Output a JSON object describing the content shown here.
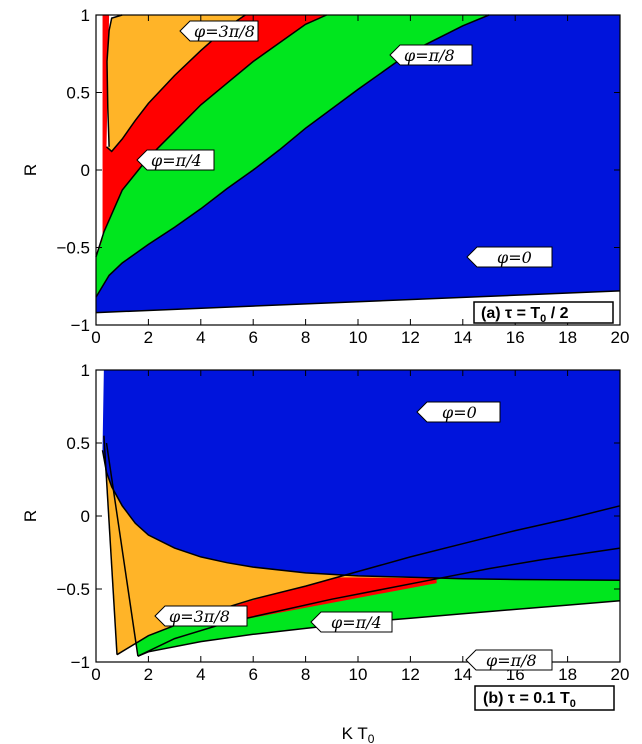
{
  "chart_data": [
    {
      "type": "area",
      "panel": "(a)",
      "panel_label_prefix": "(a)",
      "panel_label_tau": "τ = T",
      "panel_label_sub": "0",
      "panel_label_suffix": " / 2",
      "xlim": [
        0,
        20
      ],
      "ylim": [
        -1,
        1
      ],
      "xlabel": "",
      "ylabel": "R",
      "x_ticks": [
        "0",
        "2",
        "4",
        "6",
        "8",
        "10",
        "12",
        "14",
        "16",
        "18",
        "20"
      ],
      "y_ticks": [
        "1",
        "0.5",
        "0",
        "−0.5",
        "−1"
      ],
      "region_labels": [
        "φ=3π/8",
        "φ=π/8",
        "φ=π/4",
        "φ=0"
      ],
      "colors": {
        "phi_0": "#0014dc",
        "phi_pi_8": "#00e61e",
        "phi_pi_4": "#ff0000",
        "phi_3pi_8": "#ffb428",
        "none": "#ffffff"
      },
      "boundaries": {
        "lower_white": {
          "x": [
            0,
            20
          ],
          "y": [
            -0.92,
            -0.78
          ]
        },
        "blue_green": {
          "x": [
            0,
            0.5,
            1,
            2,
            3,
            4,
            5,
            6,
            7,
            8,
            10,
            12,
            14,
            15
          ],
          "y": [
            -0.82,
            -0.68,
            -0.6,
            -0.48,
            -0.37,
            -0.25,
            -0.12,
            0.0,
            0.13,
            0.27,
            0.52,
            0.76,
            0.93,
            1.0
          ]
        },
        "green_red": {
          "x": [
            0,
            0.3,
            1,
            2,
            3,
            4,
            5,
            6,
            7,
            8,
            8.8
          ],
          "y": [
            -0.56,
            -0.4,
            -0.13,
            0.08,
            0.25,
            0.42,
            0.56,
            0.7,
            0.82,
            0.94,
            1.0
          ]
        },
        "red_orange": {
          "x": [
            0.4,
            0.6,
            1,
            1.5,
            2,
            3,
            4,
            5,
            5.7
          ],
          "y": [
            0.15,
            0.12,
            0.2,
            0.32,
            0.43,
            0.61,
            0.77,
            0.92,
            1.0
          ]
        },
        "orange_top": {
          "x": [
            0.5,
            0.45,
            0.42,
            0.5,
            0.6,
            1.0
          ],
          "y": [
            0.15,
            0.4,
            0.7,
            0.9,
            0.98,
            1.0
          ]
        }
      }
    },
    {
      "type": "area",
      "panel": "(b)",
      "panel_label_prefix": "(b)",
      "panel_label_tau": "τ = 0.1 T",
      "panel_label_sub": "0",
      "panel_label_suffix": "",
      "xlim": [
        0,
        20
      ],
      "ylim": [
        -1,
        1
      ],
      "xlabel": "K T",
      "xlabel_sub": "0",
      "ylabel": "R",
      "x_ticks": [
        "0",
        "2",
        "4",
        "6",
        "8",
        "10",
        "12",
        "14",
        "16",
        "18",
        "20"
      ],
      "y_ticks": [
        "1",
        "0.5",
        "0",
        "−0.5",
        "−1"
      ],
      "region_labels": [
        "φ=0",
        "φ=3π/8",
        "φ=π/4",
        "φ=π/8"
      ],
      "colors": {
        "phi_0": "#0014dc",
        "phi_pi_8": "#00e61e",
        "phi_pi_4": "#ff0000",
        "phi_3pi_8": "#ffb428",
        "none": "#ffffff"
      },
      "boundaries": {
        "blue_orange": {
          "x": [
            0.25,
            0.4,
            0.6,
            1,
            1.5,
            2,
            3,
            4,
            5,
            6,
            8,
            10,
            12,
            14,
            16,
            20
          ],
          "y": [
            0.45,
            0.3,
            0.2,
            0.07,
            -0.05,
            -0.13,
            -0.22,
            -0.28,
            -0.32,
            -0.35,
            -0.39,
            -0.41,
            -0.42,
            -0.43,
            -0.435,
            -0.44
          ]
        },
        "green_lower": {
          "x": [
            1.6,
            2,
            4,
            6,
            8,
            10,
            12,
            14,
            16,
            18,
            20
          ],
          "y": [
            -0.96,
            -0.93,
            -0.86,
            -0.81,
            -0.77,
            -0.73,
            -0.7,
            -0.67,
            -0.64,
            -0.61,
            -0.58
          ]
        },
        "curve_a": {
          "x": [
            0.8,
            2,
            4,
            6,
            8,
            10,
            12,
            14,
            16,
            18,
            20
          ],
          "y": [
            -0.95,
            -0.82,
            -0.68,
            -0.57,
            -0.48,
            -0.38,
            -0.28,
            -0.19,
            -0.1,
            -0.02,
            0.07
          ]
        },
        "curve_b": {
          "x": [
            1.6,
            3,
            5,
            7,
            9,
            11,
            13,
            15,
            17,
            20
          ],
          "y": [
            -0.96,
            -0.84,
            -0.73,
            -0.65,
            -0.57,
            -0.5,
            -0.43,
            -0.36,
            -0.3,
            -0.22
          ]
        },
        "left_line_1": {
          "x": [
            0.3,
            0.8
          ],
          "y": [
            0.55,
            -0.95
          ]
        },
        "left_line_2": {
          "x": [
            0.4,
            1.6
          ],
          "y": [
            0.5,
            -0.96
          ]
        }
      }
    }
  ]
}
